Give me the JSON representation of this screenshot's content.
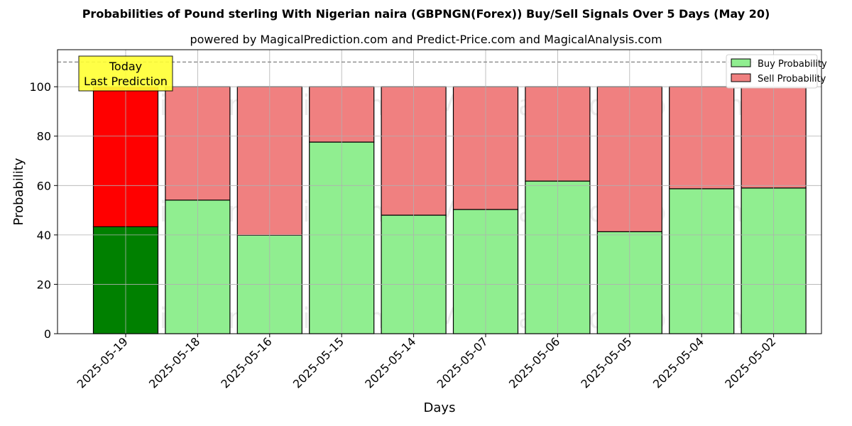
{
  "chart_data": {
    "type": "bar",
    "title": "Probabilities of Pound sterling With Nigerian naira (GBPNGN(Forex)) Buy/Sell Signals Over 5 Days (May 20)",
    "subtitle": "powered by MagicalPrediction.com and Predict-Price.com and MagicalAnalysis.com",
    "xlabel": "Days",
    "ylabel": "Probability",
    "ylim": [
      0,
      115
    ],
    "yticks": [
      0,
      20,
      40,
      60,
      80,
      100
    ],
    "reference_line": 110,
    "categories": [
      "2025-05-19",
      "2025-05-18",
      "2025-05-16",
      "2025-05-15",
      "2025-05-14",
      "2025-05-07",
      "2025-05-06",
      "2025-05-05",
      "2025-05-04",
      "2025-05-02"
    ],
    "series": [
      {
        "name": "Buy Probability",
        "values": [
          43.3,
          54.1,
          39.9,
          77.6,
          48.0,
          50.3,
          61.8,
          41.3,
          58.7,
          59.0
        ]
      },
      {
        "name": "Sell Probability",
        "values": [
          56.7,
          45.9,
          60.1,
          22.4,
          52.0,
          49.7,
          38.2,
          58.7,
          41.3,
          41.0
        ]
      }
    ],
    "colors": {
      "buy": "#90ee90",
      "sell": "#f08080",
      "buy_highlight": "#008000",
      "sell_highlight": "#ff0000",
      "annotation_bg": "#ffff33"
    },
    "annotation": {
      "line1": "Today",
      "line2": "Last Prediction"
    },
    "watermarks": [
      "MagicalAnalysis.com",
      "MagicalPrediction.com"
    ],
    "legend_position": "top-right",
    "grid": true
  }
}
